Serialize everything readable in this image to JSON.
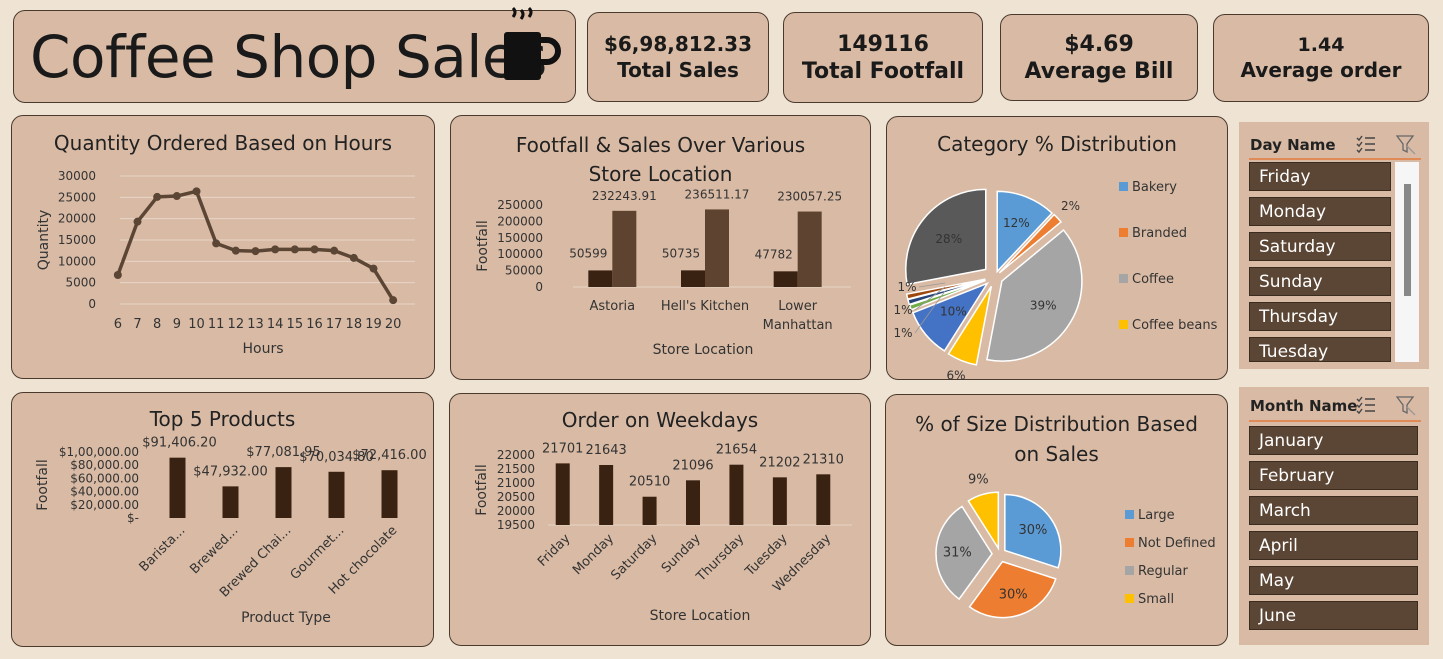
{
  "header": {
    "title": "Coffee Shop Sales",
    "icon": "coffee-cup-icon"
  },
  "kpis": [
    {
      "value": "$6,98,812.33",
      "label": "Total Sales"
    },
    {
      "value": "149116",
      "label": "Total Footfall"
    },
    {
      "value": "$4.69",
      "label": "Average Bill"
    },
    {
      "value": "1.44",
      "label": "Average order"
    }
  ],
  "colors": {
    "line": "#5b4534",
    "bar_dark": "#3a2213",
    "bar_medium": "#5e4430",
    "card": "#d9bba5"
  },
  "charts": {
    "hours": {
      "chart_data": {
        "type": "line",
        "title": "Quantity Ordered Based on Hours",
        "xlabel": "Hours",
        "ylabel": "Quantity",
        "x": [
          "6",
          "7",
          "8",
          "9",
          "10",
          "11",
          "12",
          "13",
          "14",
          "15",
          "16",
          "17",
          "18",
          "19",
          "20"
        ],
        "values": [
          6800,
          19300,
          25100,
          25300,
          26400,
          14200,
          12500,
          12400,
          12800,
          12800,
          12800,
          12500,
          10800,
          8300,
          900
        ],
        "yticks": [
          "0",
          "5000",
          "10000",
          "15000",
          "20000",
          "25000",
          "30000"
        ],
        "ylim": [
          0,
          30000
        ],
        "grid": true
      }
    },
    "footfall_sales": {
      "chart_data": {
        "type": "bar",
        "title": "Footfall & Sales Over Various Store Location",
        "title_lines": [
          "Footfall & Sales Over Various",
          "Store Location"
        ],
        "xlabel": "Store Location",
        "ylabel": "Footfall",
        "categories": [
          "Astoria",
          "Hell's Kitchen",
          "Lower Manhattan"
        ],
        "category_lines": [
          [
            "Astoria"
          ],
          [
            "Hell's Kitchen"
          ],
          [
            "Lower",
            "Manhattan"
          ]
        ],
        "series": [
          {
            "values": [
              50599,
              50735,
              47782
            ],
            "labels": [
              "50599",
              "50735",
              "47782"
            ]
          },
          {
            "values": [
              232243.91,
              236511.17,
              230057.25
            ],
            "labels": [
              "232243.91",
              "236511.17",
              "230057.25"
            ]
          }
        ],
        "yticks": [
          "0",
          "50000",
          "100000",
          "150000",
          "200000",
          "250000"
        ],
        "ylim": [
          0,
          250000
        ]
      }
    },
    "category": {
      "chart_data": {
        "type": "pie",
        "title": "Category % Distribution",
        "slices": [
          {
            "label": "12%",
            "value": 12,
            "color": "#5b9bd5"
          },
          {
            "label": "2%",
            "value": 2,
            "color": "#ed7d31"
          },
          {
            "label": "39%",
            "value": 39,
            "color": "#a5a5a5"
          },
          {
            "label": "6%",
            "value": 6,
            "color": "#ffc000"
          },
          {
            "label": "10%",
            "value": 10,
            "color": "#4472c4"
          },
          {
            "label": "1%",
            "value": 1,
            "color": "#70ad47"
          },
          {
            "label": "1%",
            "value": 1,
            "color": "#264478"
          },
          {
            "label": "1%",
            "value": 1,
            "color": "#9e480e"
          },
          {
            "label": "28%",
            "value": 28,
            "color": "#595959"
          }
        ],
        "legend": [
          {
            "name": "Bakery",
            "color": "#5b9bd5"
          },
          {
            "name": "Branded",
            "color": "#ed7d31"
          },
          {
            "name": "Coffee",
            "color": "#a5a5a5"
          },
          {
            "name": "Coffee beans",
            "color": "#ffc000"
          }
        ],
        "legend_position": "right"
      }
    },
    "products": {
      "chart_data": {
        "type": "bar",
        "title": "Top 5 Products",
        "xlabel": "Product Type",
        "ylabel": "Footfall",
        "categories": [
          "Barista...",
          "Brewed...",
          "Brewed Chai...",
          "Gourmet...",
          "Hot chocolate"
        ],
        "values": [
          91406.2,
          47932.0,
          77081.95,
          70034.8,
          72416.0
        ],
        "value_labels": [
          "$91,406.20",
          "$47,932.00",
          "$77,081.95",
          "$70,034.80",
          "$72,416.00"
        ],
        "yticks": [
          "$-",
          "$20,000.00",
          "$40,000.00",
          "$60,000.00",
          "$80,000.00",
          "$1,00,000.00"
        ],
        "ylim": [
          0,
          100000
        ]
      }
    },
    "weekdays": {
      "chart_data": {
        "type": "bar",
        "title": "Order on Weekdays",
        "xlabel": "Store Location",
        "ylabel": "Footfall",
        "categories": [
          "Friday",
          "Monday",
          "Saturday",
          "Sunday",
          "Thursday",
          "Tuesday",
          "Wednesday"
        ],
        "values": [
          21701,
          21643,
          20510,
          21096,
          21654,
          21202,
          21310
        ],
        "value_labels": [
          "21701",
          "21643",
          "20510",
          "21096",
          "21654",
          "21202",
          "21310"
        ],
        "yticks": [
          "19500",
          "20000",
          "20500",
          "21000",
          "21500",
          "22000"
        ],
        "ylim": [
          19500,
          22000
        ]
      }
    },
    "size": {
      "chart_data": {
        "type": "pie",
        "title": "% of Size Distribution Based on Sales",
        "title_lines": [
          "% of Size Distribution Based",
          "on Sales"
        ],
        "slices": [
          {
            "label": "30%",
            "value": 30,
            "color": "#5b9bd5"
          },
          {
            "label": "30%",
            "value": 30,
            "color": "#ed7d31"
          },
          {
            "label": "31%",
            "value": 31,
            "color": "#a5a5a5"
          },
          {
            "label": "9%",
            "value": 9,
            "color": "#ffc000"
          }
        ],
        "legend": [
          {
            "name": "Large",
            "color": "#5b9bd5"
          },
          {
            "name": "Not Defined",
            "color": "#ed7d31"
          },
          {
            "name": "Regular",
            "color": "#a5a5a5"
          },
          {
            "name": "Small",
            "color": "#ffc000"
          }
        ],
        "legend_position": "right"
      }
    }
  },
  "slicers": {
    "day": {
      "title": "Day Name",
      "items": [
        "Friday",
        "Monday",
        "Saturday",
        "Sunday",
        "Thursday",
        "Tuesday"
      ],
      "multiselect_icon": "multi-select-icon",
      "clear_icon": "clear-filter-icon"
    },
    "month": {
      "title": "Month Name",
      "items": [
        "January",
        "February",
        "March",
        "April",
        "May",
        "June"
      ],
      "multiselect_icon": "multi-select-icon",
      "clear_icon": "clear-filter-icon"
    }
  }
}
